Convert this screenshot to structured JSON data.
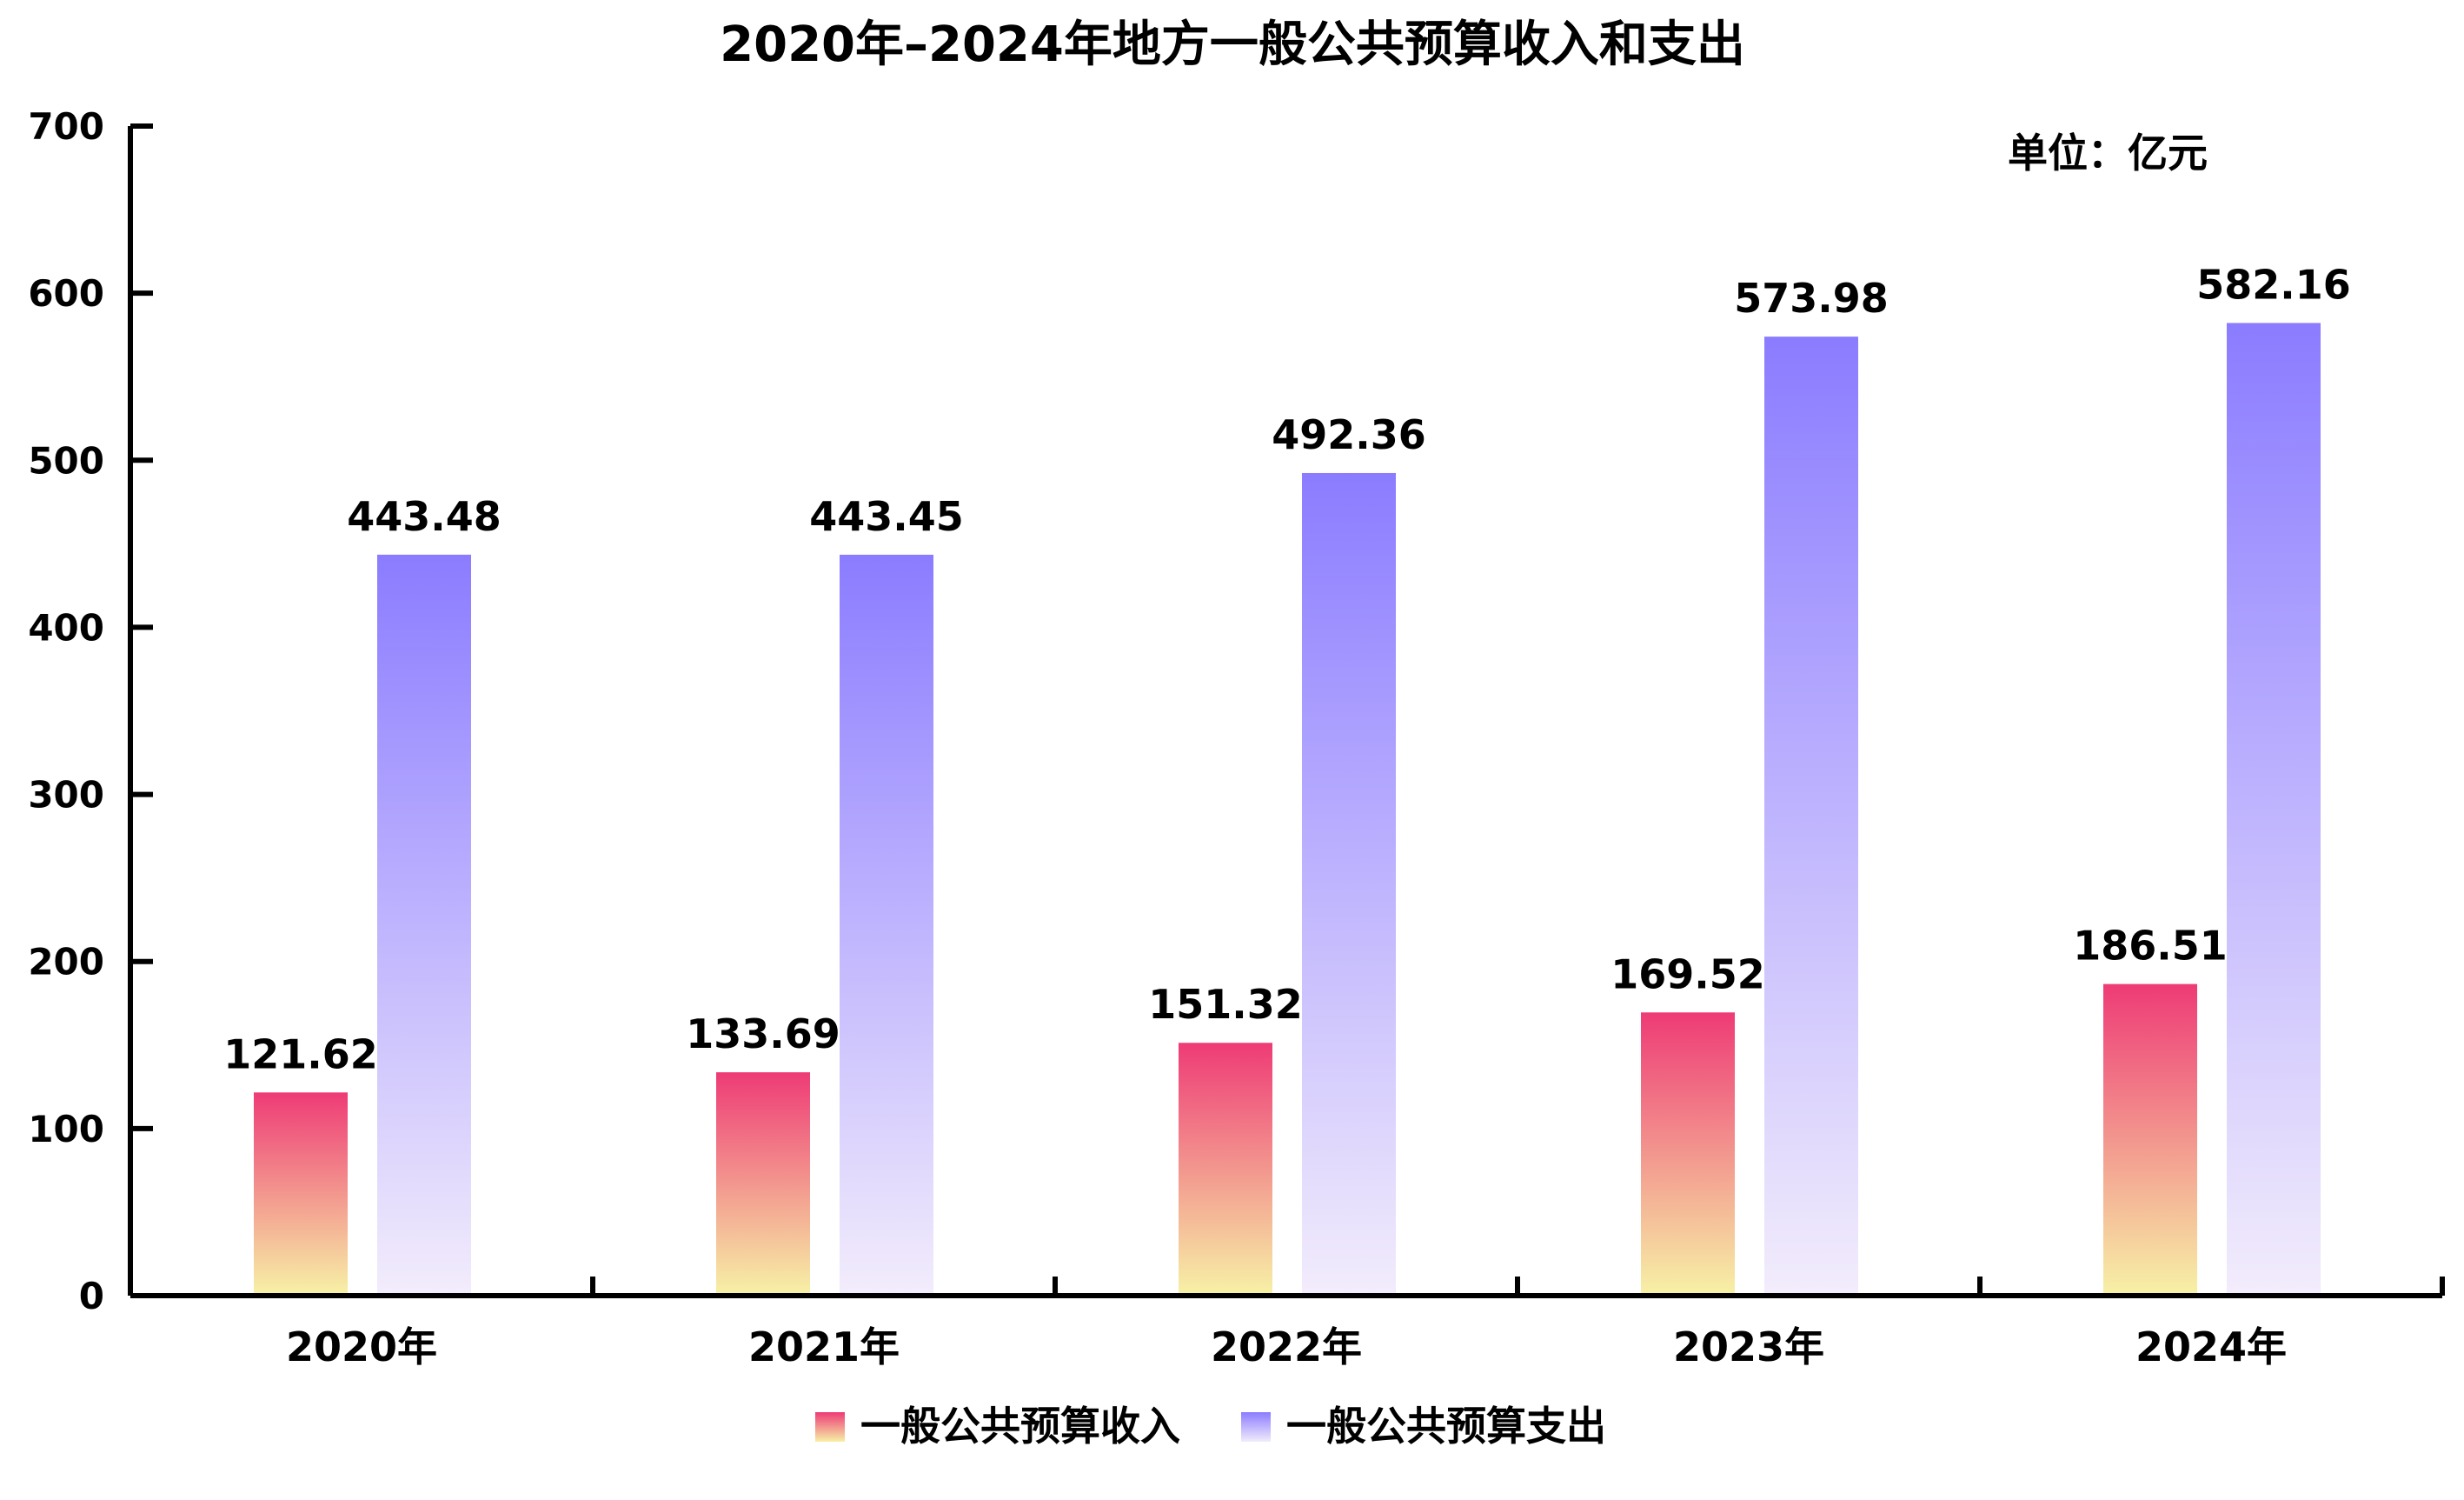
{
  "chart_data": {
    "type": "bar",
    "title": "2020年–2024年地方一般公共预算收入和支出",
    "unit_label": "单位：亿元",
    "categories": [
      "2020年",
      "2021年",
      "2022年",
      "2023年",
      "2024年"
    ],
    "series": [
      {
        "name": "一般公共预算收入",
        "values": [
          121.62,
          133.69,
          151.32,
          169.52,
          186.51
        ],
        "value_labels": [
          "121.62",
          "133.69",
          "151.32",
          "169.52",
          "186.51"
        ],
        "color_top": "#ee3b76",
        "color_bottom": "#f7f0a6"
      },
      {
        "name": "一般公共预算支出",
        "values": [
          443.48,
          443.45,
          492.36,
          573.98,
          582.16
        ],
        "value_labels": [
          "443.48",
          "443.45",
          "492.36",
          "573.98",
          "582.16"
        ],
        "color_top": "#8b7cff",
        "color_bottom": "#f2ecfc"
      }
    ],
    "ylim": [
      0,
      700
    ],
    "yticks": [
      "0",
      "100",
      "200",
      "300",
      "400",
      "500",
      "600",
      "700"
    ],
    "grid": false,
    "legend_position": "bottom-center"
  }
}
